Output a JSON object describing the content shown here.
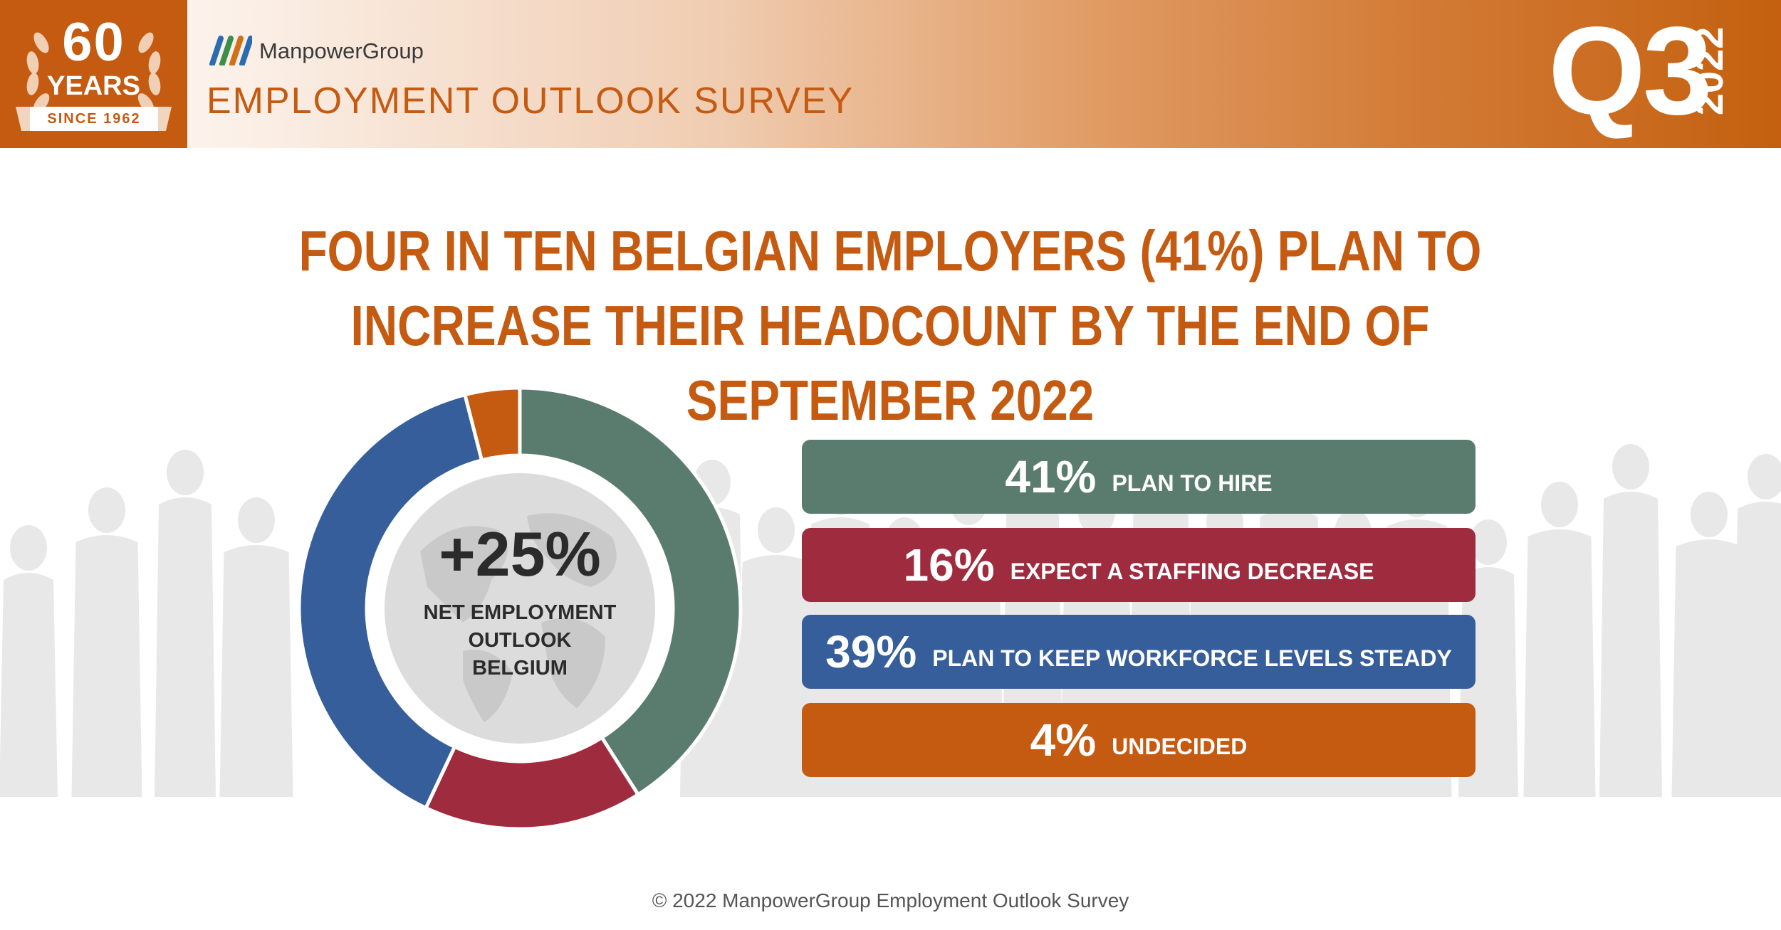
{
  "header": {
    "badge": {
      "number": "60",
      "years": "YEARS",
      "since": "SINCE 1962"
    },
    "brand": "ManpowerGroup",
    "survey_title": "EMPLOYMENT OUTLOOK SURVEY",
    "quarter": "Q3",
    "year": "2022"
  },
  "headline": {
    "line1": "FOUR IN TEN BELGIAN EMPLOYERS (41%) PLAN TO",
    "line2": "INCREASE THEIR HEADCOUNT BY THE END OF SEPTEMBER 2022"
  },
  "center": {
    "value": "+25%",
    "label_line1": "NET EMPLOYMENT",
    "label_line2": "OUTLOOK",
    "label_line3": "BELGIUM"
  },
  "chart_data": {
    "type": "pie",
    "categories": [
      "PLAN TO HIRE",
      "EXPECT A STAFFING DECREASE",
      "PLAN TO KEEP WORKFORCE LEVELS STEADY",
      "UNDECIDED"
    ],
    "values": [
      41,
      16,
      39,
      4
    ],
    "value_labels": [
      "41%",
      "16%",
      "39%",
      "4%"
    ],
    "colors": [
      "#5a7c6e",
      "#9e2b3e",
      "#365e9a",
      "#c55a11"
    ]
  },
  "footer": "© 2022 ManpowerGroup Employment Outlook Survey",
  "colors": {
    "accent": "#c55a11",
    "text_dark": "#2b2b2b",
    "background": "#ffffff"
  },
  "icons": [
    "laurel-wreath-icon",
    "manpower-logo-icon",
    "globe-icon",
    "crowd-silhouette"
  ]
}
